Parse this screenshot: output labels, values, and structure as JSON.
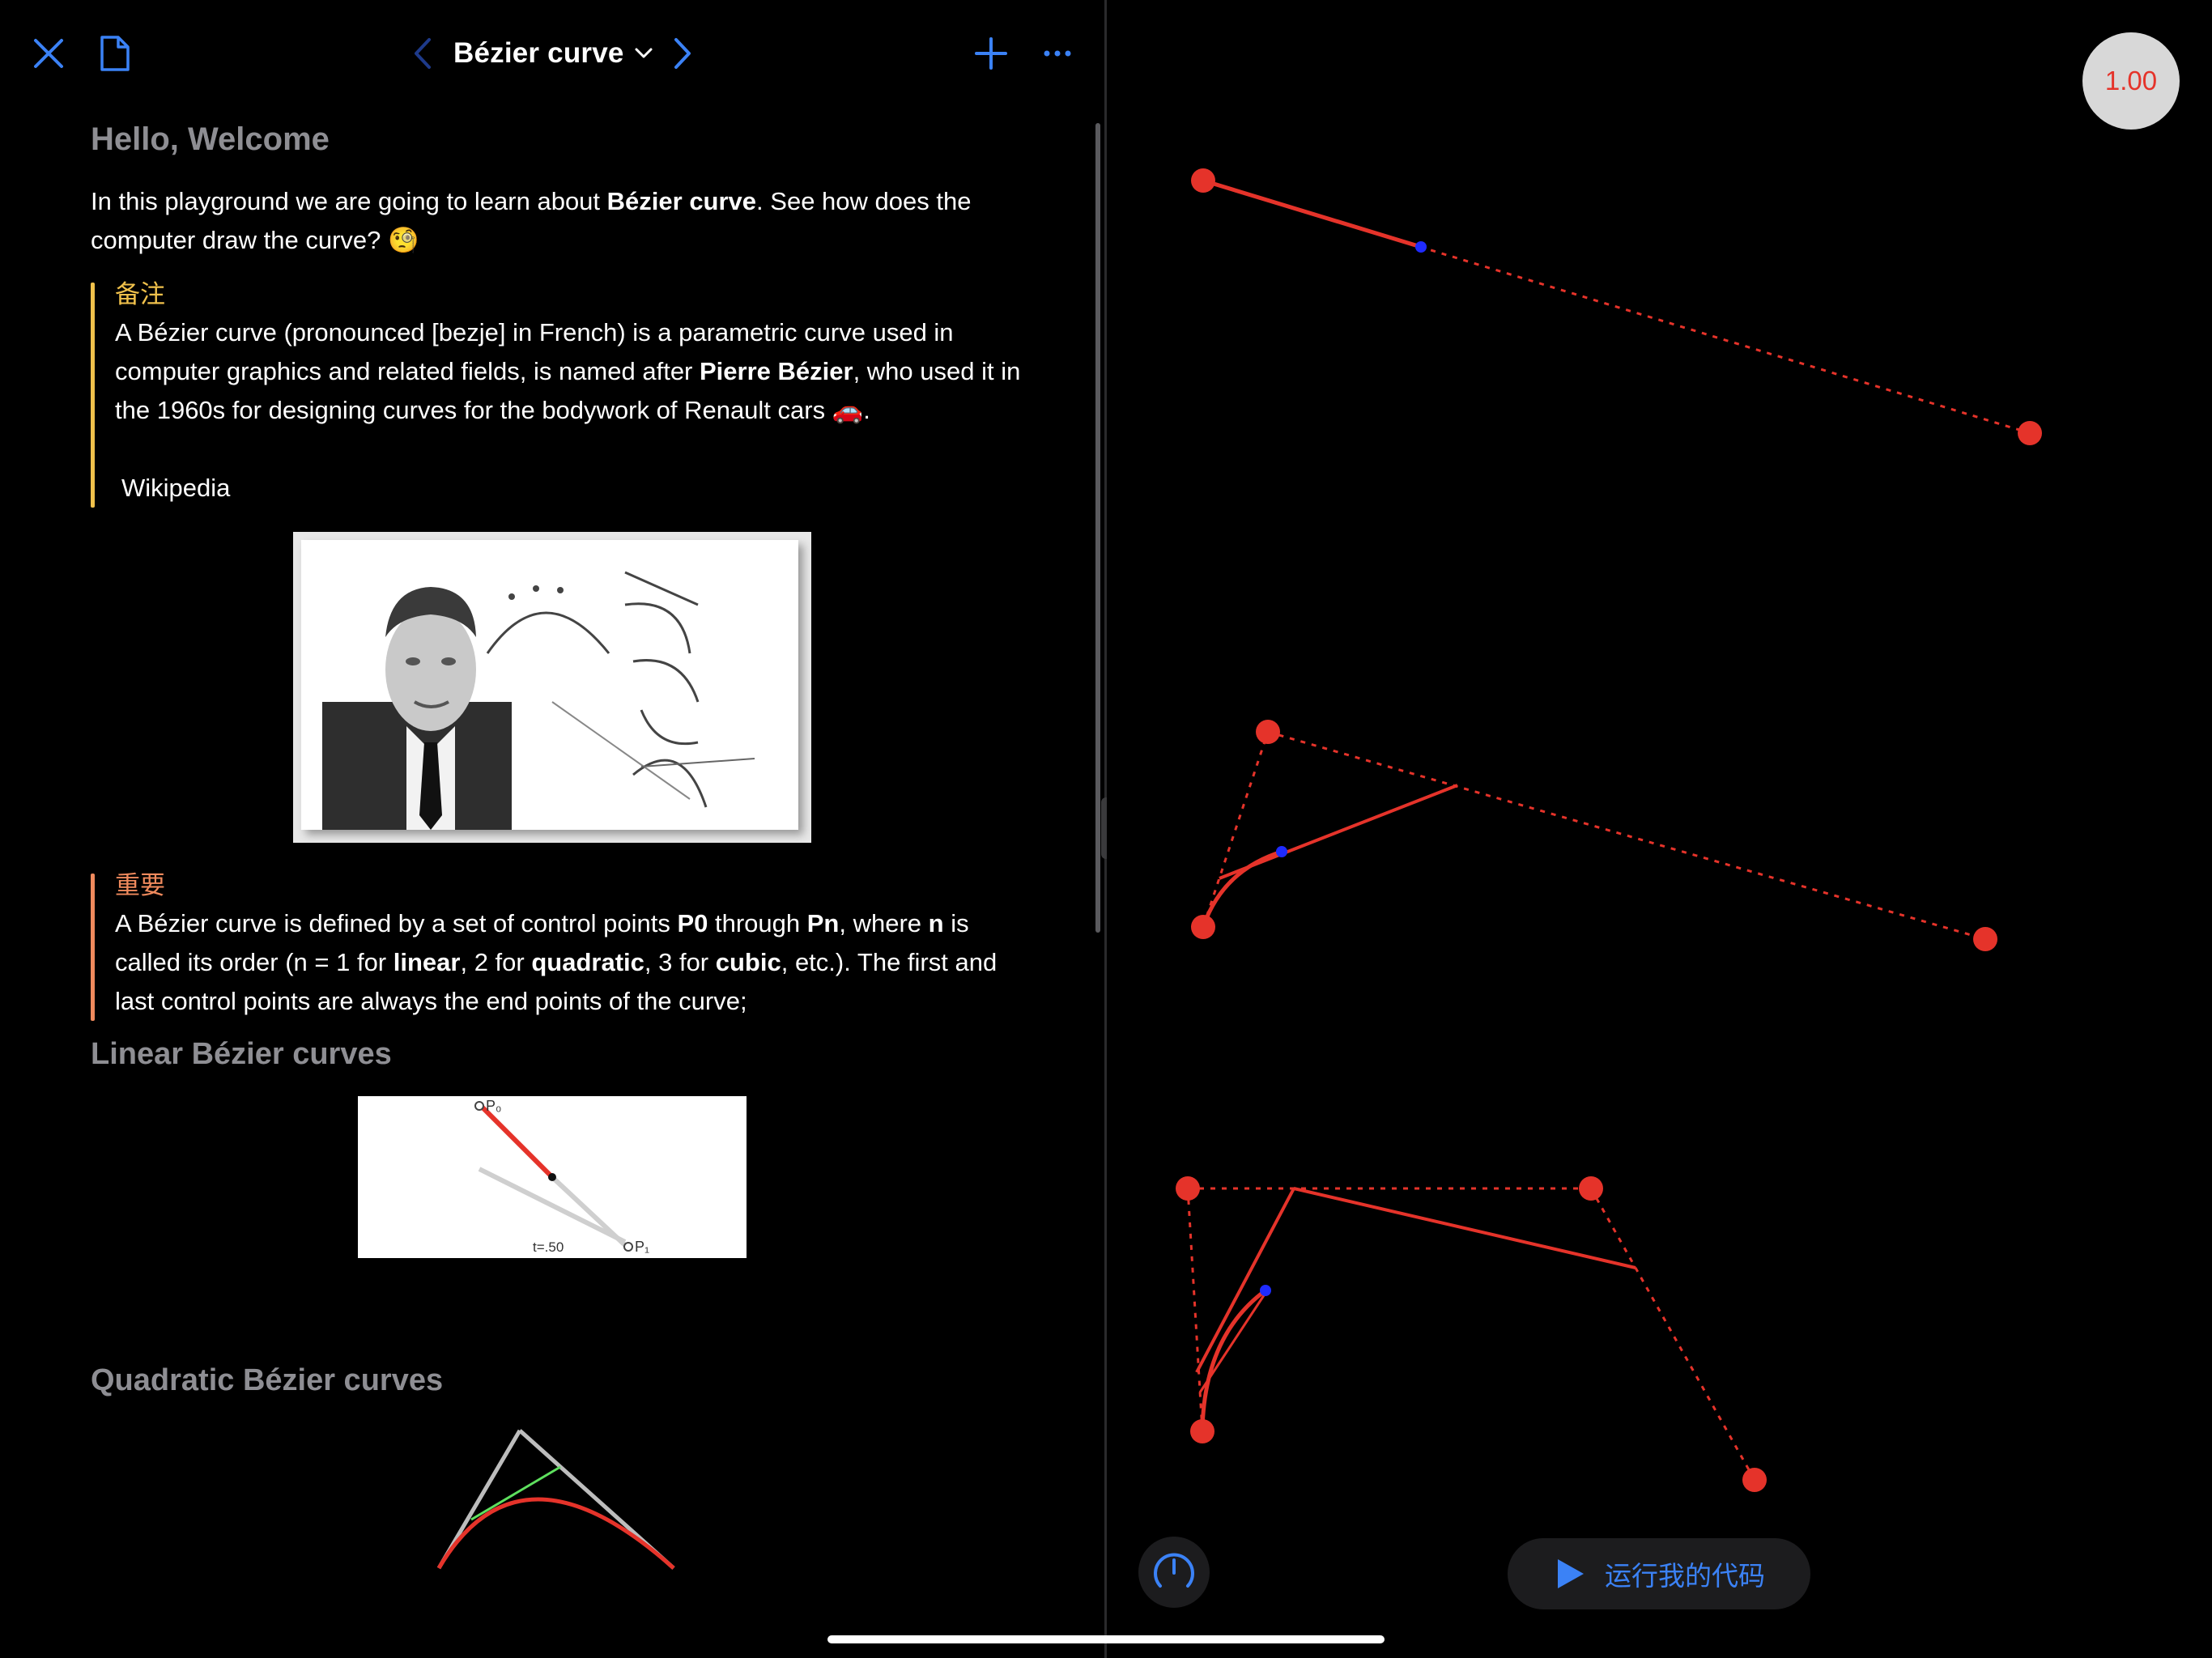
{
  "toolbar": {
    "title": "Bézier curve"
  },
  "document": {
    "heading": "Hello, Welcome",
    "intro": {
      "before": "In this playground we are going to learn about ",
      "bold": "Bézier curve",
      "after": ". See how does the computer draw the curve? 🧐"
    },
    "note": {
      "title": "备注",
      "text1": "A Bézier curve (pronounced [bezje] in French) is a parametric curve used in computer graphics and related fields,  is named after ",
      "bold": "Pierre Bézier",
      "text2": ", who used it in the 1960s for designing curves for the bodywork of Renault cars 🚗.",
      "source": "Wikipedia"
    },
    "important": {
      "title": "重要",
      "t1": "A Bézier curve is defined by a set of control points ",
      "b1": "P0",
      "t2": " through ",
      "b2": "Pn",
      "t3": ", where ",
      "b3": "n",
      "t4": " is called its order (n = 1 for ",
      "b4": "linear",
      "t5": ", 2 for ",
      "b5": "quadratic",
      "t6": ", 3 for ",
      "b6": "cubic",
      "t7": ", etc.). The first and last control points are always the end points of the curve;"
    },
    "linear_heading": "Linear Bézier curves",
    "linear_figure": {
      "p0": "P₀",
      "p1": "P₁",
      "t_label": "t=.50"
    },
    "quadratic_heading": "Quadratic Bézier curves"
  },
  "canvas": {
    "speed": "1.00",
    "run_button": "运行我的代码"
  },
  "colors": {
    "accent": "#3b82f6",
    "curve": "#e5332a",
    "note": "#f0c14b",
    "important": "#f08a5d"
  }
}
